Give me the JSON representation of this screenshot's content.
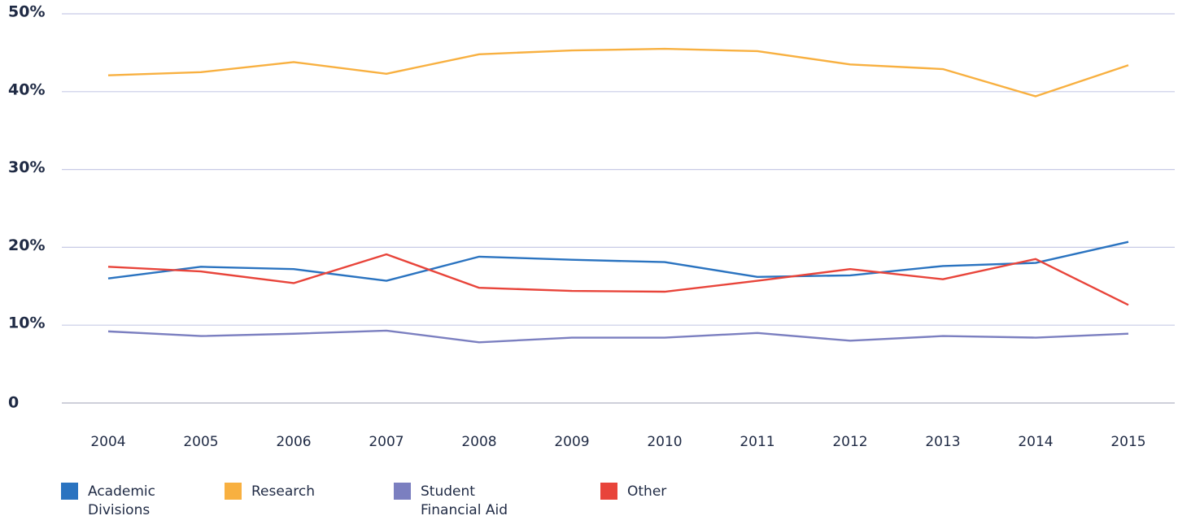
{
  "chart_data": {
    "type": "line",
    "categories": [
      "2004",
      "2005",
      "2006",
      "2007",
      "2008",
      "2009",
      "2010",
      "2011",
      "2012",
      "2013",
      "2014",
      "2015"
    ],
    "series": [
      {
        "name": "Academic Divisions",
        "color": "#2a73c0",
        "values": [
          16.0,
          17.5,
          17.2,
          15.7,
          18.8,
          18.4,
          18.1,
          16.2,
          16.4,
          17.6,
          18.0,
          20.7
        ]
      },
      {
        "name": "Research",
        "color": "#f8b040",
        "values": [
          42.1,
          42.5,
          43.8,
          42.3,
          44.8,
          45.3,
          45.5,
          45.2,
          43.5,
          42.9,
          39.4,
          43.4
        ]
      },
      {
        "name": "Student Financial Aid",
        "color": "#7b7fc0",
        "values": [
          9.2,
          8.6,
          8.9,
          9.3,
          7.8,
          8.4,
          8.4,
          9.0,
          8.0,
          8.6,
          8.4,
          8.9
        ]
      },
      {
        "name": "Other",
        "color": "#e8443a",
        "values": [
          17.5,
          16.9,
          15.4,
          19.1,
          14.8,
          14.4,
          14.3,
          15.7,
          17.2,
          15.9,
          18.5,
          12.6
        ]
      }
    ],
    "ylim": [
      0,
      50
    ],
    "yticks": [
      0,
      {
        "value": 10,
        "label": "10%"
      },
      {
        "value": 20,
        "label": "20%"
      },
      {
        "value": 30,
        "label": "30%"
      },
      {
        "value": 40,
        "label": "40%"
      },
      {
        "value": 50,
        "label": "50%"
      }
    ],
    "grid": true
  }
}
